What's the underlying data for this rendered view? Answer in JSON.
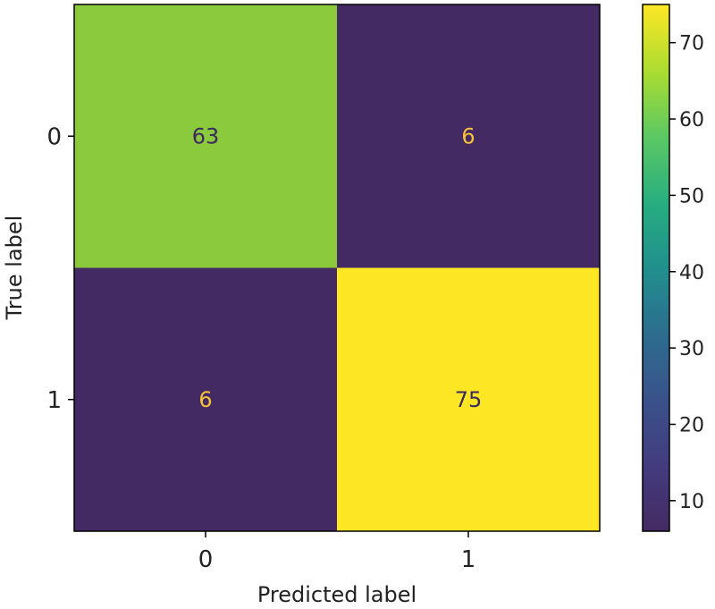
{
  "chart_data": {
    "type": "heatmap",
    "title": "",
    "xlabel": "Predicted label",
    "ylabel": "True label",
    "x_categories": [
      "0",
      "1"
    ],
    "y_categories": [
      "0",
      "1"
    ],
    "values": [
      [
        63,
        6
      ],
      [
        6,
        75
      ]
    ],
    "value_labels": [
      [
        "63",
        "6"
      ],
      [
        "6",
        "75"
      ]
    ],
    "colormap": "viridis",
    "colorbar": {
      "range": [
        6,
        75
      ],
      "ticks": [
        10,
        20,
        30,
        40,
        50,
        60,
        70
      ],
      "tick_labels": [
        "10",
        "20",
        "30",
        "40",
        "50",
        "60",
        "70"
      ]
    },
    "colors": {
      "low": "#442a63",
      "high": "#fde725",
      "mid_high": "#7ac043",
      "label_on_dark": "#f5c23a",
      "label_on_light": "#3b2a5e"
    }
  }
}
